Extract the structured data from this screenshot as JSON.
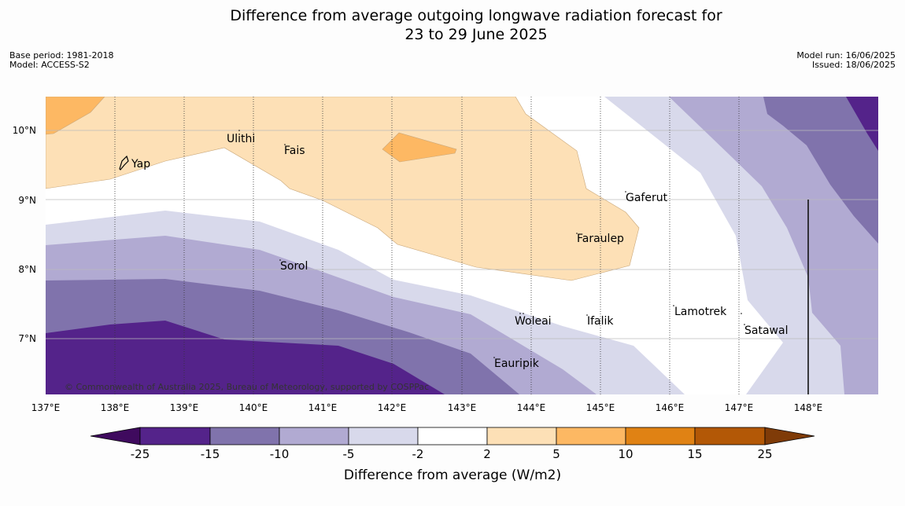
{
  "header": {
    "title_line1": "Difference from average outgoing longwave radiation forecast for",
    "title_line2": "23 to 29 June 2025",
    "base_period": "Base period: 1981-2018",
    "model": "Model: ACCESS-S2",
    "model_run": "Model run: 16/06/2025",
    "issued": "Issued: 18/06/2025"
  },
  "map": {
    "lon_ticks": [
      "137°E",
      "138°E",
      "139°E",
      "140°E",
      "141°E",
      "142°E",
      "143°E",
      "144°E",
      "145°E",
      "146°E",
      "147°E",
      "148°E"
    ],
    "lat_ticks": [
      "10°N",
      "9°N",
      "8°N",
      "7°N"
    ],
    "places": [
      "Yap",
      "Ulithi",
      "Fais",
      "Gaferut",
      "Faraulep",
      "Sorol",
      "Woleai",
      "Ifalik",
      "Lamotrek",
      "Satawal",
      "Eauripik"
    ],
    "copyright": "© Commonwealth of Australia 2025, Bureau of Meteorology, supported by COSPPac"
  },
  "colorbar": {
    "labels": [
      "-25",
      "-15",
      "-10",
      "-5",
      "-2",
      "2",
      "5",
      "10",
      "15",
      "25"
    ],
    "title": "Difference from average (W/m2)",
    "colors": [
      "#3f0a5e",
      "#54238a",
      "#8073ac",
      "#b1aad2",
      "#d8d9eb",
      "#ffffff",
      "#fde0b6",
      "#fdb863",
      "#e08214",
      "#b35806",
      "#7f3b08"
    ]
  }
}
